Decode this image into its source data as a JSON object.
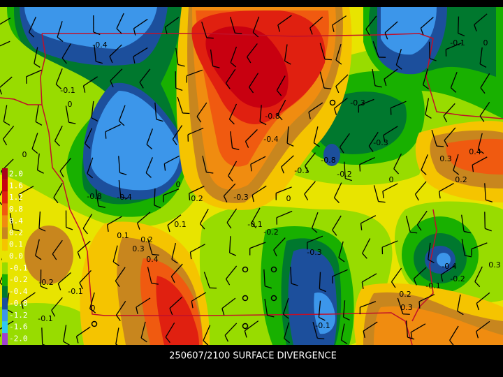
{
  "title": "250607/2100 SURFACE DIVERGENCE",
  "legend": {
    "items": [
      {
        "label": "2.0",
        "color": "#a8001c"
      },
      {
        "label": "1.6",
        "color": "#c80010"
      },
      {
        "label": "1.2",
        "color": "#e02010"
      },
      {
        "label": "0.8",
        "color": "#f05a10"
      },
      {
        "label": "0.4",
        "color": "#f08c10"
      },
      {
        "label": "0.2",
        "color": "#c8861e"
      },
      {
        "label": "0.1",
        "color": "#f5c400"
      },
      {
        "label": "0.0",
        "color": "#e8e400"
      },
      {
        "label": "-0.1",
        "color": "#98dc00"
      },
      {
        "label": "-0.2",
        "color": "#18b000"
      },
      {
        "label": "-0.4",
        "color": "#00782e"
      },
      {
        "label": "-0.8",
        "color": "#1c4f9c"
      },
      {
        "label": "-1.2",
        "color": "#3c96ea"
      },
      {
        "label": "-1.6",
        "color": "#30c8f0"
      },
      {
        "label": "-2.0",
        "color": "#a040d0"
      }
    ]
  },
  "contour_labels": [
    "-0.4",
    "-0.1",
    "0",
    "-0.8",
    "-0.4",
    "0.2",
    "-0.3",
    "0",
    "-0.1",
    "-0.2",
    "0.1",
    "0.1",
    "0.2",
    "0.3",
    "0.4",
    "-0.8",
    "-0.4",
    "-0.1",
    "-0.3",
    "-0.3",
    "-0.8",
    "-0.2",
    "0",
    "0.4",
    "0.3",
    "0.2",
    "-0.1",
    "0",
    "-0.3",
    "-0.4",
    "-0.2",
    "-0.1",
    "0.3",
    "0.2",
    "0.3",
    "-0.1",
    "-0.2",
    "-0.1",
    "0",
    "-0.1",
    "0",
    "0"
  ]
}
